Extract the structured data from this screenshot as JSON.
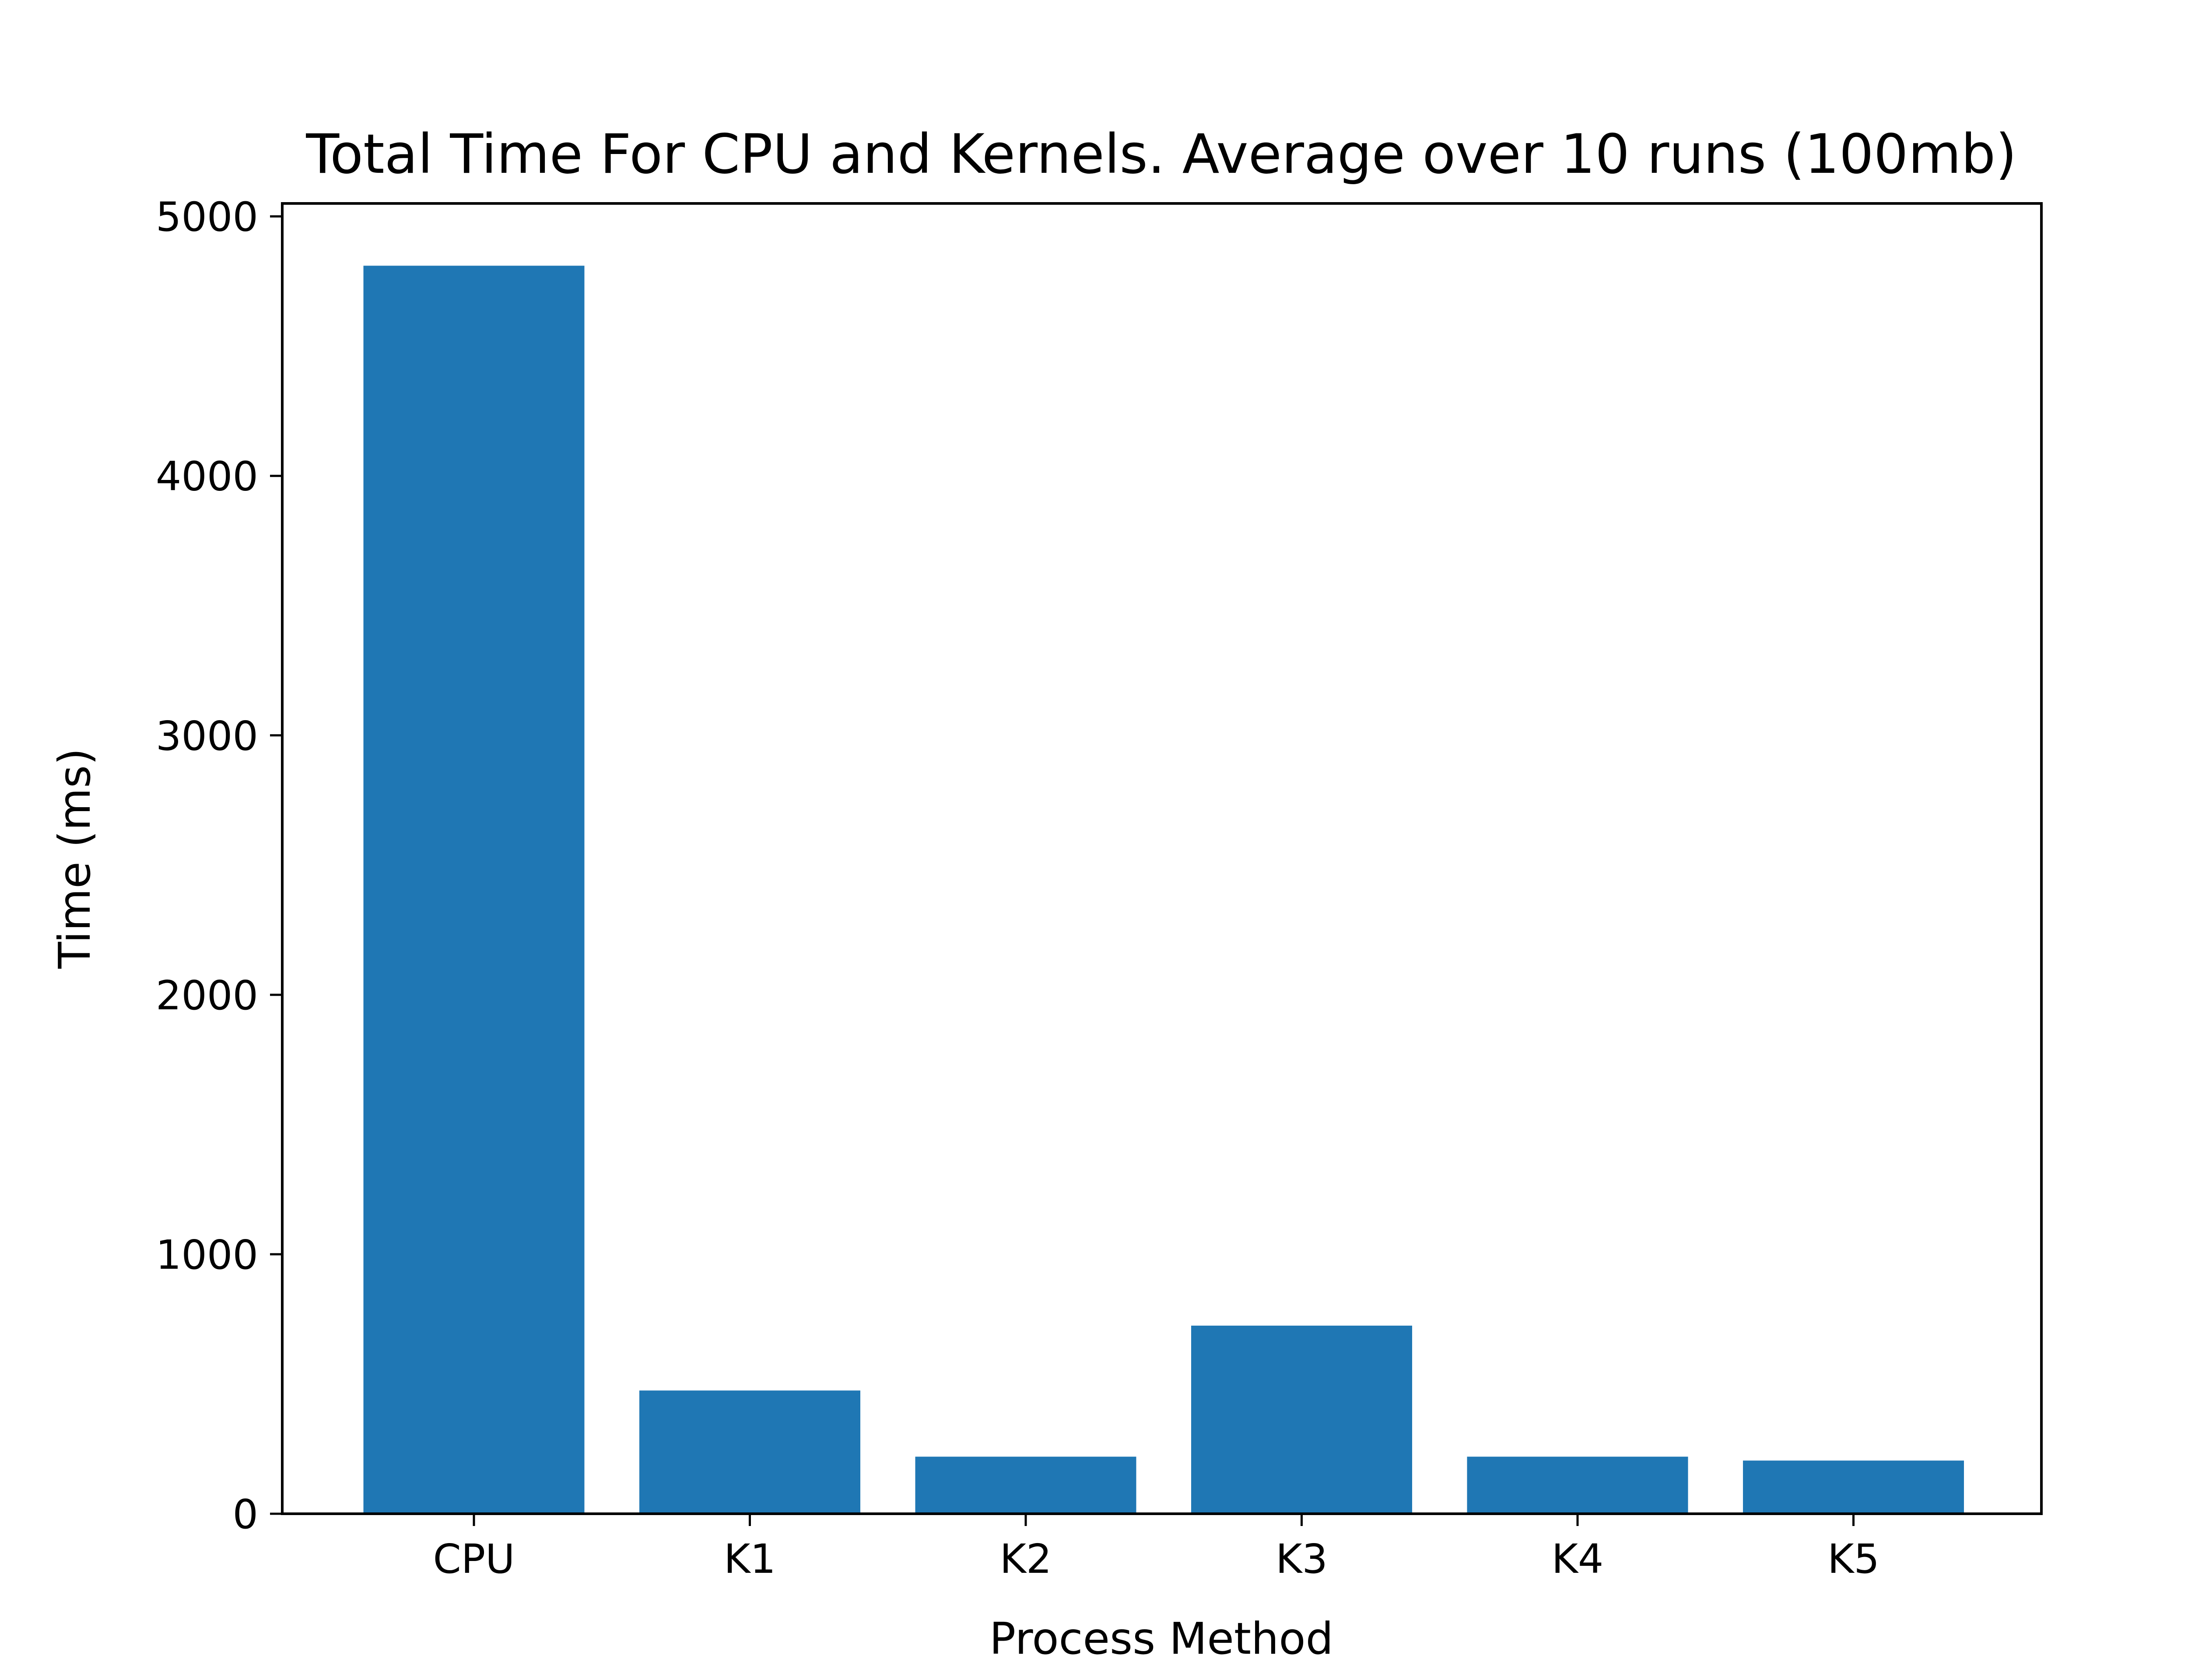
{
  "chart_data": {
    "type": "bar",
    "title": "Total Time For CPU and Kernels. Average over 10 runs (100mb)",
    "xlabel": "Process Method",
    "ylabel": "Time (ms)",
    "categories": [
      "CPU",
      "K1",
      "K2",
      "K3",
      "K4",
      "K5"
    ],
    "values": [
      4810,
      475,
      220,
      725,
      220,
      205
    ],
    "ylim": [
      0,
      5050
    ],
    "yticks": [
      0,
      1000,
      2000,
      3000,
      4000,
      5000
    ],
    "bar_color": "#1f77b4",
    "grid": false,
    "legend": false
  }
}
